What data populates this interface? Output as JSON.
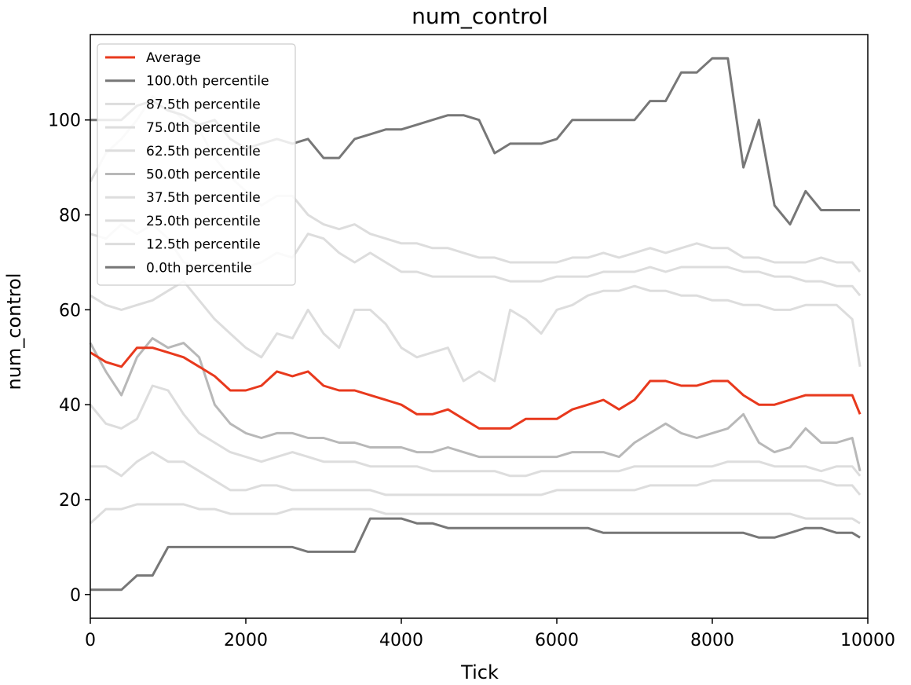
{
  "chart_data": {
    "type": "line",
    "title": "num_control",
    "xlabel": "Tick",
    "ylabel": "num_control",
    "xlim": [
      0,
      10000
    ],
    "ylim": [
      -5,
      118
    ],
    "xticks": [
      0,
      2000,
      4000,
      6000,
      8000,
      10000
    ],
    "yticks": [
      0,
      20,
      40,
      60,
      80,
      100
    ],
    "grid": false,
    "legend_position": "upper-left",
    "x": [
      0,
      200,
      400,
      600,
      800,
      1000,
      1200,
      1400,
      1600,
      1800,
      2000,
      2200,
      2400,
      2600,
      2800,
      3000,
      3200,
      3400,
      3600,
      3800,
      4000,
      4200,
      4400,
      4600,
      4800,
      5000,
      5200,
      5400,
      5600,
      5800,
      6000,
      6200,
      6400,
      6600,
      6800,
      7000,
      7200,
      7400,
      7600,
      7800,
      8000,
      8200,
      8400,
      8600,
      8800,
      9000,
      9200,
      9400,
      9600,
      9800,
      9900
    ],
    "series": [
      {
        "name": "Average",
        "color": "#e8391d",
        "width": 3,
        "values": [
          51,
          49,
          48,
          52,
          52,
          51,
          50,
          48,
          46,
          43,
          43,
          44,
          47,
          46,
          47,
          44,
          43,
          43,
          42,
          41,
          40,
          38,
          38,
          39,
          37,
          35,
          35,
          35,
          37,
          37,
          37,
          39,
          40,
          41,
          39,
          41,
          45,
          45,
          44,
          44,
          45,
          45,
          42,
          40,
          40,
          41,
          42,
          42,
          42,
          42,
          38
        ]
      },
      {
        "name": "100.0th percentile",
        "color": "#777777",
        "width": 3,
        "values": [
          100,
          100,
          100,
          103,
          104,
          102,
          101,
          99,
          100,
          96,
          94,
          95,
          96,
          95,
          96,
          92,
          92,
          96,
          97,
          98,
          98,
          99,
          100,
          101,
          101,
          100,
          93,
          95,
          95,
          95,
          96,
          100,
          100,
          100,
          100,
          100,
          104,
          104,
          110,
          110,
          113,
          113,
          90,
          100,
          82,
          78,
          85,
          81,
          81,
          81,
          81
        ]
      },
      {
        "name": "87.5th percentile",
        "color": "#dddddd",
        "width": 3,
        "values": [
          87,
          93,
          96,
          100,
          105,
          103,
          100,
          98,
          92,
          88,
          85,
          82,
          84,
          84,
          80,
          78,
          77,
          78,
          76,
          75,
          74,
          74,
          73,
          73,
          72,
          71,
          71,
          70,
          70,
          70,
          70,
          71,
          71,
          72,
          71,
          72,
          73,
          72,
          73,
          74,
          73,
          73,
          71,
          71,
          70,
          70,
          70,
          71,
          70,
          70,
          68
        ]
      },
      {
        "name": "75.0th percentile",
        "color": "#dddddd",
        "width": 3,
        "values": [
          76,
          75,
          78,
          76,
          78,
          75,
          70,
          69,
          70,
          68,
          69,
          70,
          72,
          71,
          76,
          75,
          72,
          70,
          72,
          70,
          68,
          68,
          67,
          67,
          67,
          67,
          67,
          66,
          66,
          66,
          67,
          67,
          67,
          68,
          68,
          68,
          69,
          68,
          69,
          69,
          69,
          69,
          68,
          68,
          67,
          67,
          66,
          66,
          65,
          65,
          63
        ]
      },
      {
        "name": "62.5th percentile",
        "color": "#dddddd",
        "width": 3,
        "values": [
          63,
          61,
          60,
          61,
          62,
          64,
          66,
          62,
          58,
          55,
          52,
          50,
          55,
          54,
          60,
          55,
          52,
          60,
          60,
          57,
          52,
          50,
          51,
          52,
          45,
          47,
          45,
          60,
          58,
          55,
          60,
          61,
          63,
          64,
          64,
          65,
          64,
          64,
          63,
          63,
          62,
          62,
          61,
          61,
          60,
          60,
          61,
          61,
          61,
          58,
          48
        ]
      },
      {
        "name": "50.0th percentile",
        "color": "#b8b8b8",
        "width": 3,
        "values": [
          53,
          47,
          42,
          50,
          54,
          52,
          53,
          50,
          40,
          36,
          34,
          33,
          34,
          34,
          33,
          33,
          32,
          32,
          31,
          31,
          31,
          30,
          30,
          31,
          30,
          29,
          29,
          29,
          29,
          29,
          29,
          30,
          30,
          30,
          29,
          32,
          34,
          36,
          34,
          33,
          34,
          35,
          38,
          32,
          30,
          31,
          35,
          32,
          32,
          33,
          26
        ]
      },
      {
        "name": "37.5th percentile",
        "color": "#dddddd",
        "width": 3,
        "values": [
          40,
          36,
          35,
          37,
          44,
          43,
          38,
          34,
          32,
          30,
          29,
          28,
          29,
          30,
          29,
          28,
          28,
          28,
          27,
          27,
          27,
          27,
          26,
          26,
          26,
          26,
          26,
          25,
          25,
          26,
          26,
          26,
          26,
          26,
          26,
          27,
          27,
          27,
          27,
          27,
          27,
          28,
          28,
          28,
          27,
          27,
          27,
          26,
          27,
          27,
          25
        ]
      },
      {
        "name": "25.0th percentile",
        "color": "#dddddd",
        "width": 3,
        "values": [
          27,
          27,
          25,
          28,
          30,
          28,
          28,
          26,
          24,
          22,
          22,
          23,
          23,
          22,
          22,
          22,
          22,
          22,
          22,
          21,
          21,
          21,
          21,
          21,
          21,
          21,
          21,
          21,
          21,
          21,
          22,
          22,
          22,
          22,
          22,
          22,
          23,
          23,
          23,
          23,
          24,
          24,
          24,
          24,
          24,
          24,
          24,
          24,
          23,
          23,
          21
        ]
      },
      {
        "name": "12.5th percentile",
        "color": "#dddddd",
        "width": 3,
        "values": [
          15,
          18,
          18,
          19,
          19,
          19,
          19,
          18,
          18,
          17,
          17,
          17,
          17,
          18,
          18,
          18,
          18,
          18,
          18,
          17,
          17,
          17,
          17,
          17,
          17,
          17,
          17,
          17,
          17,
          17,
          17,
          17,
          17,
          17,
          17,
          17,
          17,
          17,
          17,
          17,
          17,
          17,
          17,
          17,
          17,
          17,
          16,
          16,
          16,
          16,
          15
        ]
      },
      {
        "name": "0.0th percentile",
        "color": "#777777",
        "width": 3,
        "values": [
          1,
          1,
          1,
          4,
          4,
          10,
          10,
          10,
          10,
          10,
          10,
          10,
          10,
          10,
          9,
          9,
          9,
          9,
          16,
          16,
          16,
          15,
          15,
          14,
          14,
          14,
          14,
          14,
          14,
          14,
          14,
          14,
          14,
          13,
          13,
          13,
          13,
          13,
          13,
          13,
          13,
          13,
          13,
          12,
          12,
          13,
          14,
          14,
          13,
          13,
          12
        ]
      }
    ]
  }
}
